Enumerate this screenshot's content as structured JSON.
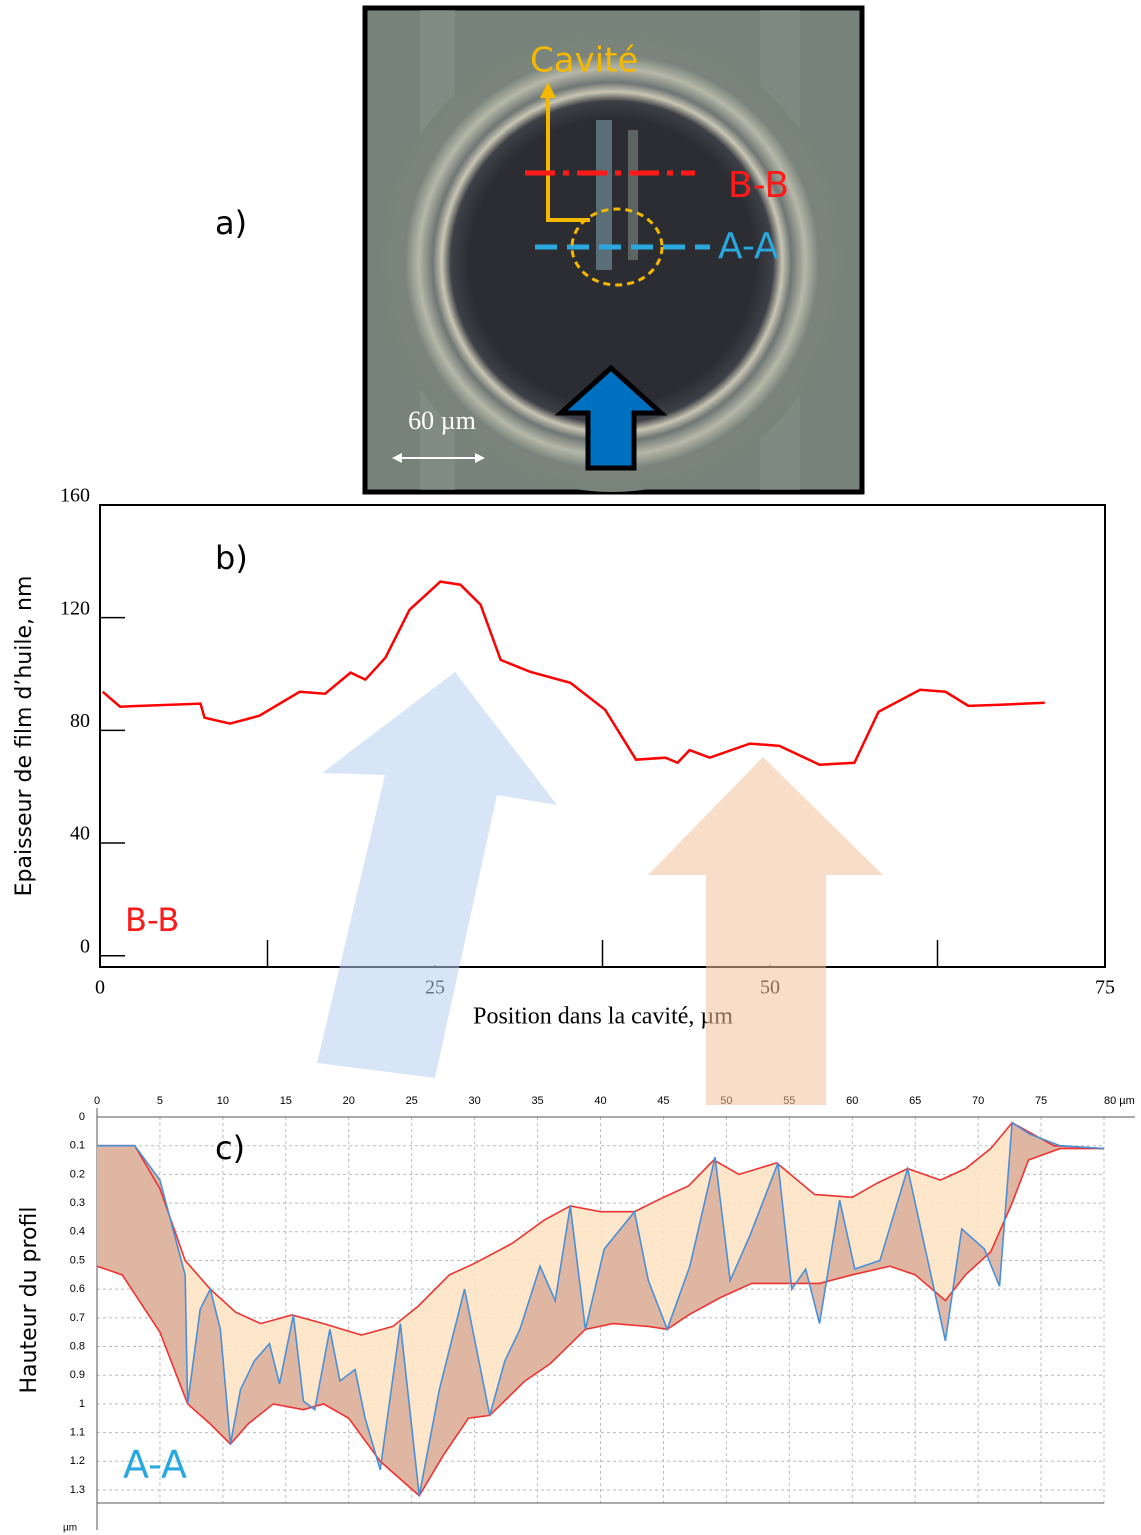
{
  "image": {
    "label": "a)",
    "cavity": "Cavité",
    "section_bb": "B-B",
    "section_aa": "A-A",
    "scale": "60 µm"
  },
  "chart_data": [
    {
      "type": "line",
      "annotations": [
        "b)",
        "B-B"
      ],
      "x_label": "Position dans la cavité, µm",
      "y_label": "Epaisseur de film d’huile, nm",
      "xlim": [
        0,
        75
      ],
      "ylim": [
        -4,
        160
      ],
      "xticks": [
        0,
        25,
        50,
        75
      ],
      "xminorticks": [
        12.5,
        37.5,
        62.5
      ],
      "yticks": [
        0,
        40,
        80,
        120,
        160
      ],
      "x": [
        0.2,
        1.5,
        7.5,
        7.8,
        9.7,
        11.9,
        14.9,
        16.8,
        18.7,
        19.8,
        21.3,
        23.1,
        25.4,
        26.9,
        28.4,
        29.9,
        32.1,
        35.1,
        37.7,
        40,
        42.2,
        43.1,
        44,
        45.5,
        48.5,
        50.7,
        53.7,
        56.3,
        58.1,
        61.2,
        63.1,
        64.8,
        67.2,
        70.5
      ],
      "series": [
        {
          "color": "#ff0000",
          "values": [
            93.7,
            88.4,
            89.5,
            84.5,
            82.4,
            85.2,
            93.7,
            93,
            100.5,
            98,
            105.8,
            122.8,
            132.8,
            131.7,
            124.6,
            105,
            100.8,
            96.9,
            87.3,
            69.6,
            70.3,
            68.5,
            73,
            70.3,
            75.3,
            74.5,
            67.8,
            68.5,
            86.6,
            94.4,
            93.7,
            88.7,
            89.1,
            89.8
          ]
        }
      ]
    },
    {
      "type": "profile",
      "annotations": [
        "c)",
        "A-A"
      ],
      "y_label": "Hauteur du profil",
      "y_unit": "µm",
      "y_inverted": true,
      "xlim": [
        0,
        80
      ],
      "ylim": [
        0,
        1.3
      ],
      "xticks": [
        0,
        5,
        10,
        15,
        20,
        25,
        30,
        35,
        40,
        45,
        50,
        55,
        60,
        65,
        70,
        75,
        {
          "value": 80,
          "label": "80 µm"
        }
      ],
      "yticks": [
        0,
        0.1,
        0.2,
        0.3,
        0.4,
        0.5,
        0.6,
        0.7,
        0.8,
        0.9,
        1,
        1.1,
        1.2,
        1.3
      ],
      "grid": true,
      "series": [
        {
          "color": "#ee3333",
          "x": [
            0,
            3,
            5,
            7,
            9,
            11,
            13,
            15.5,
            18,
            21,
            23.5,
            25.5,
            28,
            30,
            33,
            35.5,
            37.6,
            40,
            42.7,
            45,
            47,
            49,
            51,
            54,
            57,
            60,
            62,
            64.4,
            67,
            69,
            71,
            72.7,
            76,
            80
          ],
          "values": [
            0.1,
            0.1,
            0.25,
            0.5,
            0.6,
            0.68,
            0.72,
            0.69,
            0.72,
            0.76,
            0.73,
            0.66,
            0.55,
            0.51,
            0.44,
            0.36,
            0.31,
            0.33,
            0.33,
            0.28,
            0.24,
            0.15,
            0.2,
            0.16,
            0.27,
            0.28,
            0.23,
            0.18,
            0.22,
            0.18,
            0.11,
            0.02,
            0.1,
            0.11
          ]
        },
        {
          "color": "#ee3333",
          "x": [
            0,
            2,
            5,
            7.2,
            9,
            10.6,
            12,
            14,
            16.4,
            18,
            20,
            22.5,
            25.6,
            27.5,
            29.5,
            31.2,
            34,
            36,
            38.8,
            41,
            43.8,
            45.3,
            47,
            49.5,
            52,
            55.2,
            57.4,
            60,
            63,
            65,
            67.4,
            69,
            71,
            72.7,
            74,
            76.5,
            80
          ],
          "values": [
            0.52,
            0.55,
            0.75,
            1.0,
            1.07,
            1.14,
            1.07,
            1.0,
            1.02,
            1.0,
            1.05,
            1.2,
            1.32,
            1.18,
            1.05,
            1.04,
            0.92,
            0.86,
            0.74,
            0.72,
            0.73,
            0.74,
            0.69,
            0.63,
            0.58,
            0.58,
            0.58,
            0.55,
            0.52,
            0.55,
            0.64,
            0.55,
            0.47,
            0.3,
            0.15,
            0.11,
            0.11
          ]
        },
        {
          "color": "#4a90d9",
          "x": [
            0,
            3,
            5,
            7,
            7.2,
            8.2,
            9,
            9.8,
            10.6,
            11.4,
            12.5,
            13.7,
            14.5,
            15.6,
            16.4,
            17.3,
            18.5,
            19.3,
            20.5,
            21.3,
            22.5,
            24.1,
            25.6,
            27.2,
            29.2,
            31.2,
            32.4,
            33.6,
            35.2,
            36.4,
            37.6,
            38.8,
            40.3,
            42.7,
            43.8,
            45.3,
            47.1,
            49.1,
            50.3,
            51.9,
            54.1,
            55.2,
            56.3,
            57.4,
            59,
            60.2,
            62.2,
            64.4,
            65.8,
            67.4,
            68.7,
            70.5,
            71.7,
            72.7,
            74.1,
            76.5,
            80
          ],
          "values": [
            0.1,
            0.1,
            0.22,
            0.55,
            1.0,
            0.67,
            0.6,
            0.74,
            1.14,
            0.95,
            0.85,
            0.79,
            0.93,
            0.69,
            0.99,
            1.02,
            0.74,
            0.92,
            0.88,
            1.05,
            1.23,
            0.72,
            1.32,
            0.95,
            0.6,
            1.04,
            0.85,
            0.74,
            0.52,
            0.64,
            0.31,
            0.74,
            0.46,
            0.33,
            0.57,
            0.74,
            0.52,
            0.14,
            0.57,
            0.41,
            0.16,
            0.6,
            0.53,
            0.72,
            0.29,
            0.53,
            0.5,
            0.18,
            0.46,
            0.78,
            0.39,
            0.46,
            0.59,
            0.02,
            0.06,
            0.1,
            0.11
          ]
        }
      ]
    }
  ]
}
